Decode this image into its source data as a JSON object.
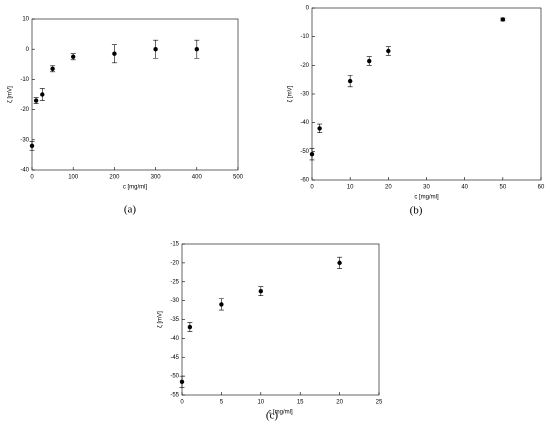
{
  "chart_data": [
    {
      "type": "scatter",
      "caption": "(a)",
      "xlabel": "c [mg/ml]",
      "ylabel": "ζ [mV]",
      "color": "#000000",
      "x": [
        0,
        10,
        25,
        50,
        100,
        200,
        300,
        400
      ],
      "values": [
        -32,
        -17,
        -15,
        -6.5,
        -2.5,
        -1.5,
        0,
        0
      ],
      "errors": [
        1.5,
        1,
        2,
        1,
        1,
        3,
        3,
        3
      ],
      "xlim": [
        0,
        500
      ],
      "xticks": [
        0,
        100,
        200,
        300,
        400,
        500
      ],
      "ylim": [
        -40,
        10
      ],
      "yticks": [
        -40,
        -30,
        -20,
        -10,
        0,
        10
      ]
    },
    {
      "type": "scatter",
      "caption": "(b)",
      "xlabel": "c [mg/ml]",
      "ylabel": "ζ [mV]",
      "color": "#000000",
      "x": [
        0,
        2,
        10,
        15,
        20,
        50
      ],
      "values": [
        -51,
        -42,
        -25.5,
        -18.5,
        -15,
        -4
      ],
      "errors": [
        2,
        1.5,
        2,
        1.5,
        1.5,
        0.5
      ],
      "xlim": [
        0,
        60
      ],
      "xticks": [
        0,
        10,
        20,
        30,
        40,
        50,
        60
      ],
      "ylim": [
        -60,
        0
      ],
      "yticks": [
        -60,
        -50,
        -40,
        -30,
        -20,
        -10,
        0
      ]
    },
    {
      "type": "scatter",
      "caption": "(c)",
      "xlabel": "c [mg/ml]",
      "ylabel": "ζ [mV]",
      "color": "#000000",
      "x": [
        0,
        1,
        5,
        10,
        20
      ],
      "values": [
        -51.5,
        -37,
        -31,
        -27.5,
        -20
      ],
      "errors": [
        1.5,
        1.2,
        1.5,
        1.2,
        1.5
      ],
      "xlim": [
        0,
        25
      ],
      "xticks": [
        0,
        5,
        10,
        15,
        20,
        25
      ],
      "ylim": [
        -55,
        -15
      ],
      "yticks": [
        -55,
        -50,
        -45,
        -40,
        -35,
        -30,
        -25,
        -20,
        -15
      ]
    }
  ]
}
